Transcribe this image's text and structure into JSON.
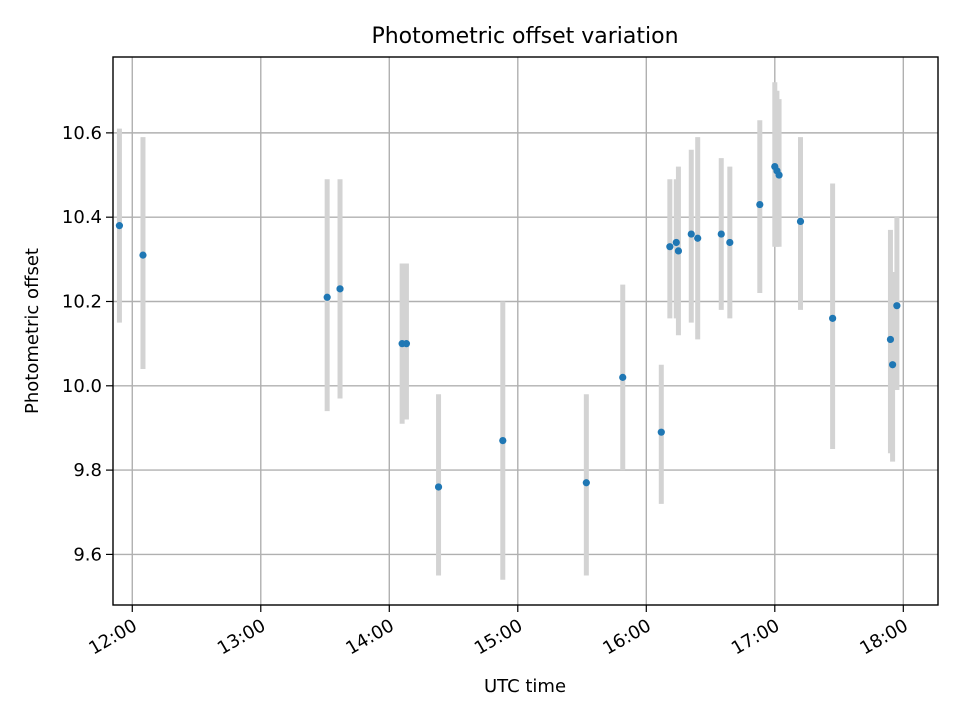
{
  "chart_data": {
    "type": "scatter",
    "title": "Photometric offset variation",
    "xlabel": "UTC time",
    "ylabel": "Photometric offset",
    "x_tick_labels": [
      "12:00",
      "13:00",
      "14:00",
      "15:00",
      "16:00",
      "17:00",
      "18:00"
    ],
    "x_tick_hours": [
      12,
      13,
      14,
      15,
      16,
      17,
      18
    ],
    "xlim_hours": [
      11.85,
      18.27
    ],
    "y_ticks": [
      9.6,
      9.8,
      10.0,
      10.2,
      10.4,
      10.6
    ],
    "y_tick_labels": [
      "9.6",
      "9.8",
      "10.0",
      "10.2",
      "10.4",
      "10.6"
    ],
    "ylim": [
      9.48,
      10.78
    ],
    "grid": true,
    "colors": {
      "point": "#1f77b4",
      "error_bar": "#d3d3d3"
    },
    "points": [
      {
        "x": "11:54",
        "y": 10.38,
        "low": 10.15,
        "high": 10.61
      },
      {
        "x": "12:05",
        "y": 10.31,
        "low": 10.04,
        "high": 10.59
      },
      {
        "x": "13:31",
        "y": 10.21,
        "low": 9.94,
        "high": 10.49
      },
      {
        "x": "13:37",
        "y": 10.23,
        "low": 9.97,
        "high": 10.49
      },
      {
        "x": "14:06",
        "y": 10.1,
        "low": 9.91,
        "high": 10.29
      },
      {
        "x": "14:08",
        "y": 10.1,
        "low": 9.92,
        "high": 10.29
      },
      {
        "x": "14:23",
        "y": 9.76,
        "low": 9.55,
        "high": 9.98
      },
      {
        "x": "14:53",
        "y": 9.87,
        "low": 9.54,
        "high": 10.2
      },
      {
        "x": "15:32",
        "y": 9.77,
        "low": 9.55,
        "high": 9.98
      },
      {
        "x": "15:49",
        "y": 10.02,
        "low": 9.8,
        "high": 10.24
      },
      {
        "x": "16:07",
        "y": 9.89,
        "low": 9.72,
        "high": 10.05
      },
      {
        "x": "16:11",
        "y": 10.33,
        "low": 10.16,
        "high": 10.49
      },
      {
        "x": "16:14",
        "y": 10.34,
        "low": 10.16,
        "high": 10.49
      },
      {
        "x": "16:15",
        "y": 10.32,
        "low": 10.12,
        "high": 10.52
      },
      {
        "x": "16:21",
        "y": 10.36,
        "low": 10.15,
        "high": 10.56
      },
      {
        "x": "16:24",
        "y": 10.35,
        "low": 10.11,
        "high": 10.59
      },
      {
        "x": "16:35",
        "y": 10.36,
        "low": 10.18,
        "high": 10.54
      },
      {
        "x": "16:39",
        "y": 10.34,
        "low": 10.16,
        "high": 10.52
      },
      {
        "x": "16:53",
        "y": 10.43,
        "low": 10.22,
        "high": 10.63
      },
      {
        "x": "17:00",
        "y": 10.52,
        "low": 10.33,
        "high": 10.72
      },
      {
        "x": "17:01",
        "y": 10.51,
        "low": 10.33,
        "high": 10.7
      },
      {
        "x": "17:02",
        "y": 10.5,
        "low": 10.33,
        "high": 10.68
      },
      {
        "x": "17:12",
        "y": 10.39,
        "low": 10.18,
        "high": 10.59
      },
      {
        "x": "17:27",
        "y": 10.16,
        "low": 9.85,
        "high": 10.48
      },
      {
        "x": "17:54",
        "y": 10.11,
        "low": 9.84,
        "high": 10.37
      },
      {
        "x": "17:55",
        "y": 10.05,
        "low": 9.82,
        "high": 10.27
      },
      {
        "x": "17:57",
        "y": 10.19,
        "low": 9.99,
        "high": 10.4
      }
    ]
  }
}
